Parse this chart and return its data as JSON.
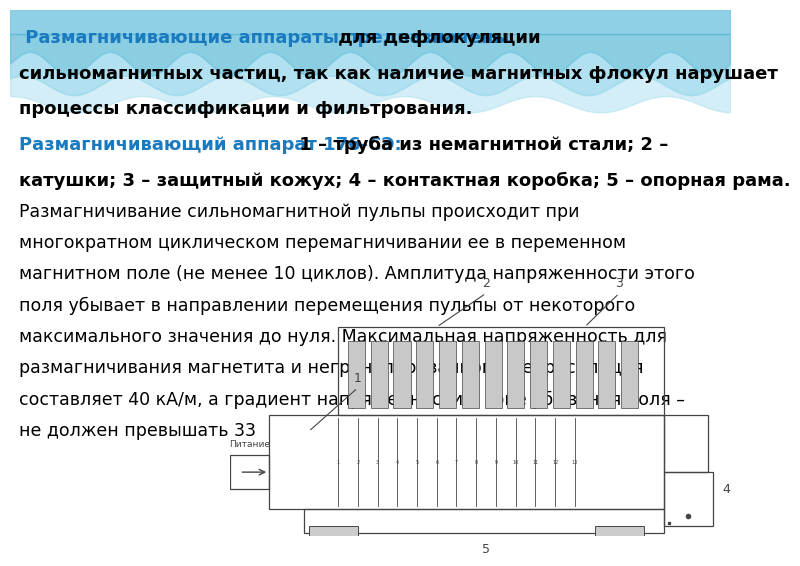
{
  "background_color": "#ffffff",
  "title_cyan": " Размагничивающие аппараты предназначены",
  "title_cyan_color": "#1a7abf",
  "title_black": " для дефлокуляции",
  "line2": "сильномагнитных частиц, так как наличие магнитных флокул нарушает",
  "line3": "процессы классификации и фильтрования.",
  "line4_cyan": "Размагничивающий аппарат 176-СЭ:",
  "line4_cyan_color": "#1a7abf",
  "line4_black": " 1 – труба из немагнитной стали; 2 –",
  "line5": "катушки; 3 – защитный кожух; 4 – контактная коробка; 5 – опорная рама.",
  "para_lines": [
    "Размагничивание сильномагнитной пульпы происходит при",
    "многократном циклическом перемагничивании ее в переменном",
    "магнитном поле (не менее 10 циклов). Амплитуда напряженности этого",
    "поля убывает в направлении перемещения пульпы от некоторого",
    "максимального значения до нуля. Максимальная напряженность для",
    "размагничивания магнетита и негранулированного ферросилиция",
    "составляет 40 кА/м, а градиент напряженности в зоне убывания поля –",
    "не должен превышать 33"
  ],
  "text_color": "#000000",
  "bold_fontsize": 13,
  "para_fontsize": 12.5,
  "wave_colors": [
    "#87CEEB",
    "#5BB8D4",
    "#3AA0C0"
  ],
  "diagram_color": "#444444"
}
